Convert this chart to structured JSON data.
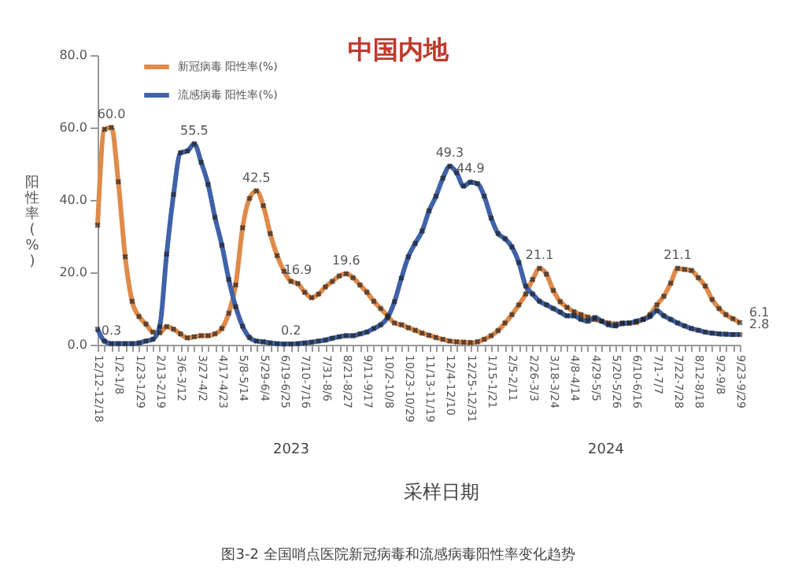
{
  "chart_data": {
    "type": "line",
    "title": "中国内地",
    "xlabel": "采样日期",
    "ylabel": "阳性率(%)",
    "categories": [
      "12/12-12/18",
      null,
      null,
      "1/2-1/8",
      null,
      null,
      "1/23-1/29",
      null,
      null,
      "2/13-2/19",
      null,
      null,
      "3/6-3/12",
      null,
      null,
      "3/27-4/2",
      null,
      null,
      "4/17-4/23",
      null,
      null,
      "5/8-5/14",
      null,
      null,
      "5/29-6/4",
      null,
      null,
      "6/19-6/25",
      null,
      null,
      "7/10-7/16",
      null,
      null,
      "7/31-8/6",
      null,
      null,
      "8/21-8/27",
      null,
      null,
      "9/11-9/17",
      null,
      null,
      "10/2-10/8",
      null,
      null,
      "10/23-10/29",
      null,
      null,
      "11/13-11/19",
      null,
      null,
      "12/4-12/10",
      null,
      null,
      "12/25-12/31",
      null,
      null,
      "1/15-1/21",
      null,
      null,
      "2/5-2/11",
      null,
      null,
      "2/26-3/3",
      null,
      null,
      "3/18-3/24",
      null,
      null,
      "4/8-4/14",
      null,
      null,
      "4/29-5/5",
      null,
      null,
      "5/20-5/26",
      null,
      null,
      "6/10-6/16",
      null,
      null,
      "7/1-7/7",
      null,
      null,
      "7/22-7/28",
      null,
      null,
      "8/12-8/18",
      null,
      null,
      "9/2-9/8",
      null,
      null,
      "9/23-9/29"
    ],
    "series": [
      {
        "name": "新冠病毒 阳性率(%)",
        "color": "#e08a4a",
        "values": [
          33,
          59.5,
          60.0,
          45,
          24.3,
          12,
          7.8,
          5.7,
          3.5,
          3.3,
          5,
          4.3,
          3,
          1.9,
          2.2,
          2.5,
          2.5,
          3,
          4.5,
          8.7,
          16.5,
          32.3,
          40.4,
          42.5,
          38.4,
          30.7,
          24.6,
          20.3,
          17.5,
          16.9,
          14.5,
          13,
          14,
          16,
          17.5,
          19,
          19.6,
          18.5,
          16.5,
          14.5,
          12,
          10,
          8,
          6,
          5.5,
          4.7,
          4,
          3.2,
          2.6,
          2,
          1.5,
          1.0,
          0.8,
          0.7,
          0.6,
          0.8,
          1.5,
          2.5,
          3.9,
          6,
          8.3,
          11,
          14,
          18,
          21.1,
          19.5,
          15,
          11.9,
          10.3,
          9.1,
          8.3,
          7.6,
          7,
          6.5,
          6,
          5.7,
          5.8,
          6,
          6.2,
          7,
          8.3,
          11,
          13.4,
          17,
          21.1,
          20.8,
          20.5,
          18.5,
          16.2,
          12.5,
          10,
          8.3,
          7.2,
          6.1
        ],
        "value_labels": [
          null,
          null,
          "60.0",
          null,
          null,
          null,
          null,
          null,
          null,
          null,
          null,
          null,
          null,
          null,
          null,
          null,
          null,
          null,
          null,
          null,
          null,
          null,
          null,
          "42.5",
          null,
          null,
          null,
          null,
          null,
          "16.9",
          null,
          null,
          null,
          null,
          null,
          null,
          "19.6",
          null,
          null,
          null,
          null,
          null,
          null,
          null,
          null,
          null,
          null,
          null,
          null,
          null,
          null,
          null,
          null,
          null,
          null,
          null,
          null,
          null,
          null,
          null,
          null,
          null,
          null,
          null,
          "21.1",
          null,
          null,
          null,
          null,
          null,
          null,
          null,
          null,
          null,
          null,
          null,
          null,
          null,
          null,
          null,
          null,
          null,
          null,
          null,
          "21.1",
          null,
          null,
          null,
          null,
          null,
          null,
          null,
          null,
          "6.1"
        ]
      },
      {
        "name": "流感病毒 阳性率(%)",
        "color": "#3f62a8",
        "values": [
          4.3,
          1.0,
          0.3,
          0.3,
          0.3,
          0.3,
          0.5,
          1.0,
          1.5,
          5,
          25,
          41.5,
          53,
          53.5,
          55.5,
          50.4,
          44.3,
          35.2,
          27.5,
          18,
          10.5,
          5.1,
          2,
          1,
          0.8,
          0.5,
          0.3,
          0.2,
          0.2,
          0.3,
          0.5,
          0.7,
          1.0,
          1.3,
          1.8,
          2.2,
          2.5,
          2.5,
          3,
          3.5,
          4.5,
          5.5,
          7.5,
          11.9,
          18.4,
          24.3,
          28,
          31.4,
          37,
          41,
          46,
          49.3,
          47.5,
          43.8,
          44.9,
          44.5,
          41,
          35,
          30.7,
          29.3,
          27,
          22.7,
          16.2,
          14,
          12,
          11,
          10,
          9,
          8,
          8,
          7,
          6.5,
          7.5,
          6.5,
          5.5,
          5.2,
          6,
          6,
          6.5,
          7,
          7.8,
          9.4,
          8,
          7,
          6,
          5.2,
          4.5,
          4,
          3.5,
          3.2,
          3,
          2.9,
          2.8,
          2.8
        ],
        "value_labels": [
          null,
          null,
          "0.3",
          null,
          null,
          null,
          null,
          null,
          null,
          null,
          null,
          null,
          null,
          null,
          "55.5",
          null,
          null,
          null,
          null,
          null,
          null,
          null,
          null,
          null,
          null,
          null,
          null,
          null,
          "0.2",
          null,
          null,
          null,
          null,
          null,
          null,
          null,
          null,
          null,
          null,
          null,
          null,
          null,
          null,
          null,
          null,
          null,
          null,
          null,
          null,
          null,
          null,
          "49.3",
          null,
          null,
          "44.9",
          null,
          null,
          null,
          null,
          null,
          null,
          null,
          null,
          null,
          null,
          null,
          null,
          null,
          null,
          null,
          null,
          null,
          null,
          null,
          null,
          null,
          null,
          null,
          null,
          null,
          null,
          null,
          null,
          null,
          null,
          null,
          null,
          null,
          null,
          null,
          null,
          null,
          null,
          "2.8"
        ]
      }
    ],
    "ylim": [
      0,
      80
    ],
    "yticks": [
      {
        "value": 0,
        "label": "0.0"
      },
      {
        "value": 20,
        "label": "20.0"
      },
      {
        "value": 40,
        "label": "40.0"
      },
      {
        "value": 60,
        "label": "60.0"
      },
      {
        "value": 80,
        "label": "80.0"
      }
    ],
    "annotations": [
      "2023",
      "2024",
      "图3-2 全国哨点医院新冠病毒和流感病毒阳性率变化趋势"
    ],
    "legend": "top left",
    "grid": false,
    "marker": "cross",
    "line_style": "solid"
  }
}
